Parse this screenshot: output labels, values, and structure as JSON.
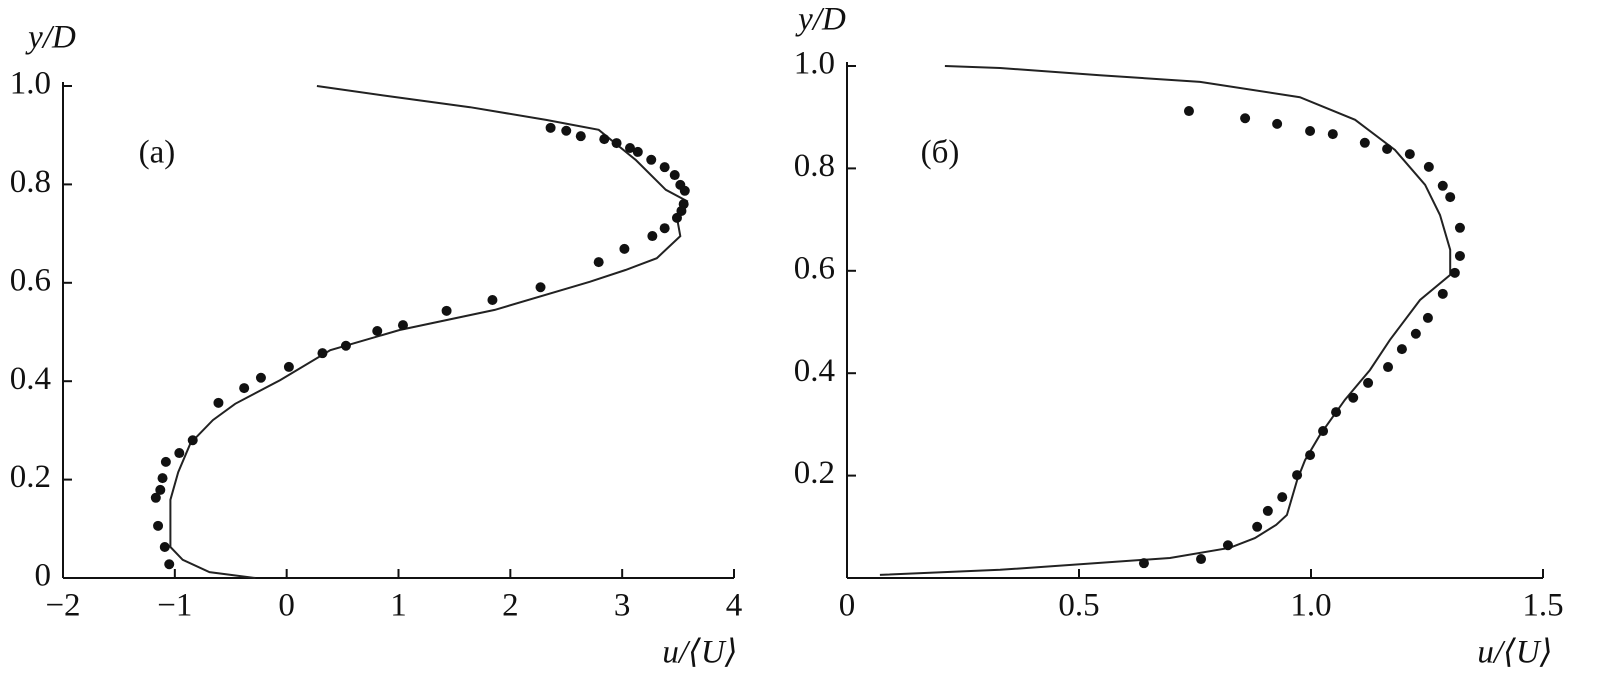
{
  "chart_data": [
    {
      "type": "line",
      "annotation": "(a)",
      "xlabel": "u/⟨U⟩",
      "ylabel": "y/D",
      "xlim": [
        -2,
        4
      ],
      "ylim": [
        0,
        1.0
      ],
      "xticks": [
        {
          "value": -2,
          "label": "−2"
        },
        {
          "value": -1,
          "label": "−1"
        },
        0,
        1,
        2,
        3,
        4
      ],
      "yticks": [
        0,
        0.2,
        0.4,
        0.6,
        0.8,
        {
          "value": 1.0,
          "label": "1.0"
        }
      ],
      "series": [
        {
          "mode": "line",
          "color": "#222222",
          "x": [
            0.27,
            0.95,
            1.64,
            2.32,
            2.79,
            3.12,
            3.39,
            3.58,
            3.49,
            3.52,
            3.31,
            3.03,
            2.71,
            1.86,
            1.01,
            0.39,
            -0.06,
            -0.46,
            -0.66,
            -0.86,
            -0.97,
            -1.04,
            -1.04,
            -0.93,
            -0.69,
            -0.28
          ],
          "y": [
            1.0,
            0.978,
            0.957,
            0.931,
            0.911,
            0.85,
            0.789,
            0.766,
            0.732,
            0.695,
            0.65,
            0.626,
            0.602,
            0.545,
            0.504,
            0.463,
            0.402,
            0.354,
            0.321,
            0.274,
            0.215,
            0.159,
            0.063,
            0.037,
            0.012,
            0
          ]
        },
        {
          "mode": "markers",
          "color": "#111111",
          "x": [
            2.36,
            2.5,
            2.63,
            2.84,
            2.95,
            3.07,
            3.14,
            3.26,
            3.38,
            3.47,
            3.52,
            3.56,
            3.55,
            3.53,
            3.49,
            3.38,
            3.27,
            3.02,
            2.79,
            2.27,
            1.84,
            1.43,
            1.04,
            0.81,
            0.53,
            0.32,
            0.02,
            -0.23,
            -0.38,
            -0.61,
            -0.84,
            -0.96,
            -1.08,
            -1.11,
            -1.13,
            -1.17,
            -1.15,
            -1.09,
            -1.05
          ],
          "y": [
            0.915,
            0.909,
            0.898,
            0.892,
            0.884,
            0.874,
            0.866,
            0.85,
            0.835,
            0.819,
            0.799,
            0.787,
            0.76,
            0.746,
            0.732,
            0.711,
            0.695,
            0.669,
            0.642,
            0.591,
            0.565,
            0.543,
            0.514,
            0.502,
            0.472,
            0.457,
            0.429,
            0.407,
            0.386,
            0.356,
            0.28,
            0.254,
            0.236,
            0.203,
            0.179,
            0.163,
            0.106,
            0.063,
            0.028
          ]
        }
      ]
    },
    {
      "type": "line",
      "annotation": "(б)",
      "xlabel": "u/⟨U⟩",
      "ylabel": "y/D",
      "xlim": [
        0,
        1.5
      ],
      "ylim": [
        0,
        1.0
      ],
      "xticks": [
        0,
        0.5,
        {
          "value": 1.0,
          "label": "1.0"
        },
        1.5
      ],
      "yticks": [
        0.2,
        0.4,
        0.6,
        0.8,
        {
          "value": 1.0,
          "label": "1.0"
        }
      ],
      "series": [
        {
          "mode": "line",
          "color": "#222222",
          "x": [
            0.211,
            0.33,
            0.545,
            0.761,
            0.976,
            1.095,
            1.181,
            1.246,
            1.278,
            1.3,
            1.3,
            1.235,
            1.17,
            1.127,
            1.073,
            1.019,
            0.987,
            0.97,
            0.948,
            0.925,
            0.879,
            0.825,
            0.696,
            0.33,
            0.071
          ],
          "y": [
            1.0,
            0.996,
            0.982,
            0.969,
            0.939,
            0.895,
            0.836,
            0.768,
            0.709,
            0.641,
            0.592,
            0.543,
            0.465,
            0.406,
            0.348,
            0.279,
            0.23,
            0.191,
            0.123,
            0.104,
            0.078,
            0.059,
            0.039,
            0.016,
            0.006
          ]
        },
        {
          "mode": "markers",
          "color": "#111111",
          "x": [
            0.737,
            0.858,
            0.927,
            0.998,
            1.047,
            1.116,
            1.164,
            1.213,
            1.254,
            1.284,
            1.3,
            1.321,
            1.321,
            1.31,
            1.284,
            1.252,
            1.226,
            1.196,
            1.166,
            1.123,
            1.091,
            1.054,
            1.026,
            0.998,
            0.97,
            0.938,
            0.907,
            0.884,
            0.821,
            0.763,
            0.64
          ],
          "y": [
            0.912,
            0.898,
            0.887,
            0.873,
            0.867,
            0.85,
            0.838,
            0.828,
            0.803,
            0.766,
            0.744,
            0.684,
            0.629,
            0.596,
            0.555,
            0.508,
            0.477,
            0.447,
            0.412,
            0.381,
            0.352,
            0.324,
            0.287,
            0.24,
            0.201,
            0.158,
            0.131,
            0.1,
            0.064,
            0.037,
            0.029
          ]
        }
      ]
    }
  ]
}
